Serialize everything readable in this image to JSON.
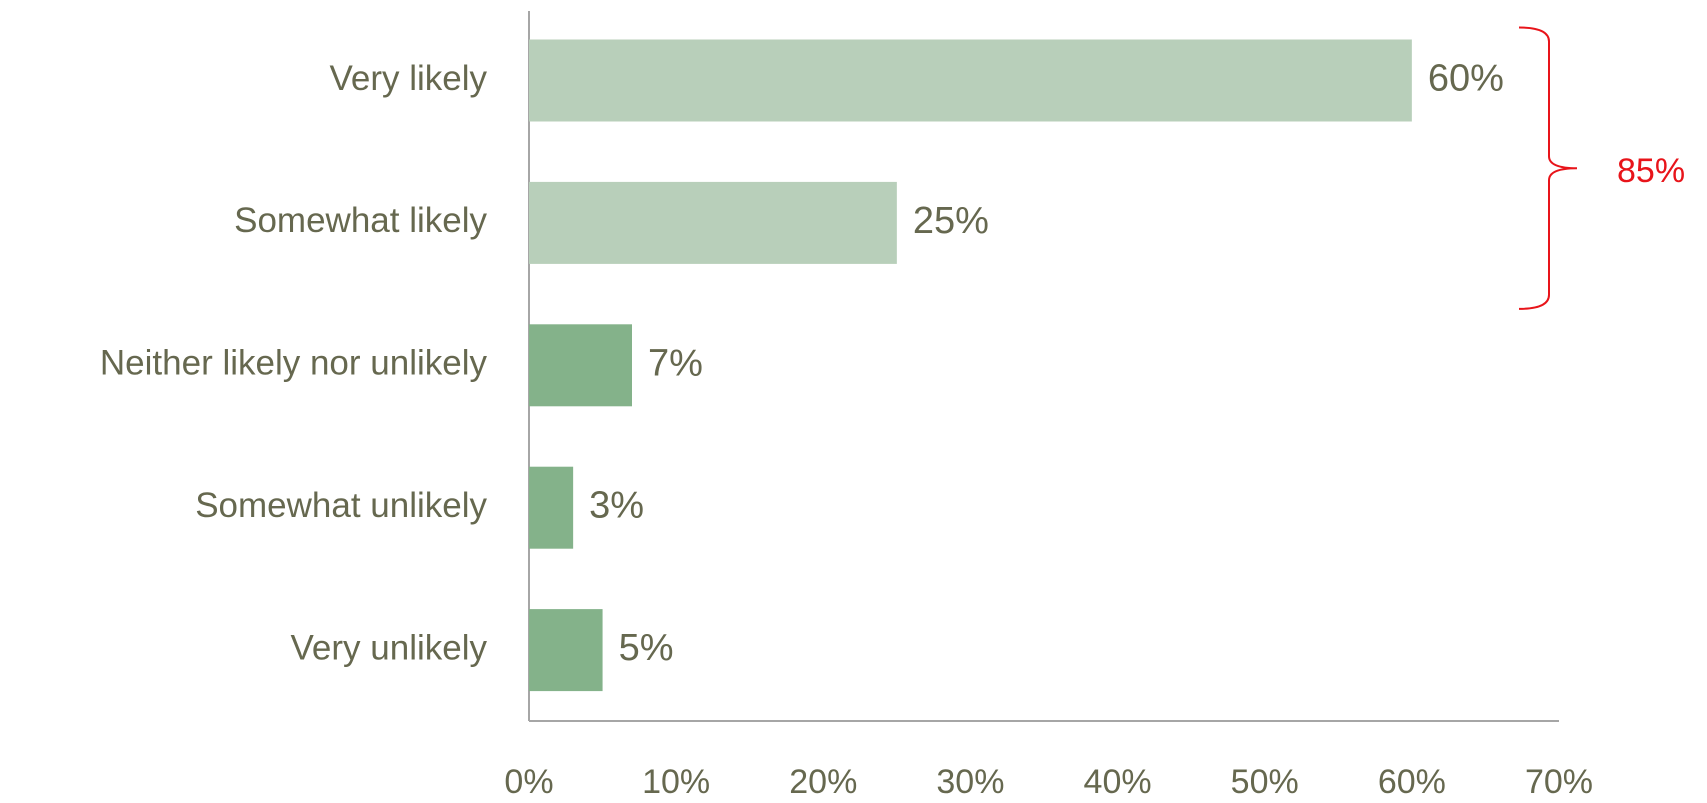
{
  "chart_data": {
    "type": "bar",
    "orientation": "horizontal",
    "categories": [
      "Very likely",
      "Somewhat likely",
      "Neither likely nor unlikely",
      "Somewhat unlikely",
      "Very unlikely"
    ],
    "values": [
      60,
      25,
      7,
      3,
      5
    ],
    "value_labels": [
      "60%",
      "25%",
      "7%",
      "3%",
      "5%"
    ],
    "colors": [
      "#b8cfba",
      "#b8cfba",
      "#84b28a",
      "#84b28a",
      "#84b28a"
    ],
    "xlim": [
      0,
      70
    ],
    "xticks": [
      {
        "value": 0,
        "label": "0%"
      },
      {
        "value": 10,
        "label": "10%"
      },
      {
        "value": 20,
        "label": "20%"
      },
      {
        "value": 30,
        "label": "30%"
      },
      {
        "value": 40,
        "label": "40%"
      },
      {
        "value": 50,
        "label": "50%"
      },
      {
        "value": 60,
        "label": "60%"
      },
      {
        "value": 70,
        "label": "70%"
      }
    ],
    "grid": false,
    "annotation": {
      "text": "85%",
      "color": "#e8141a"
    }
  }
}
